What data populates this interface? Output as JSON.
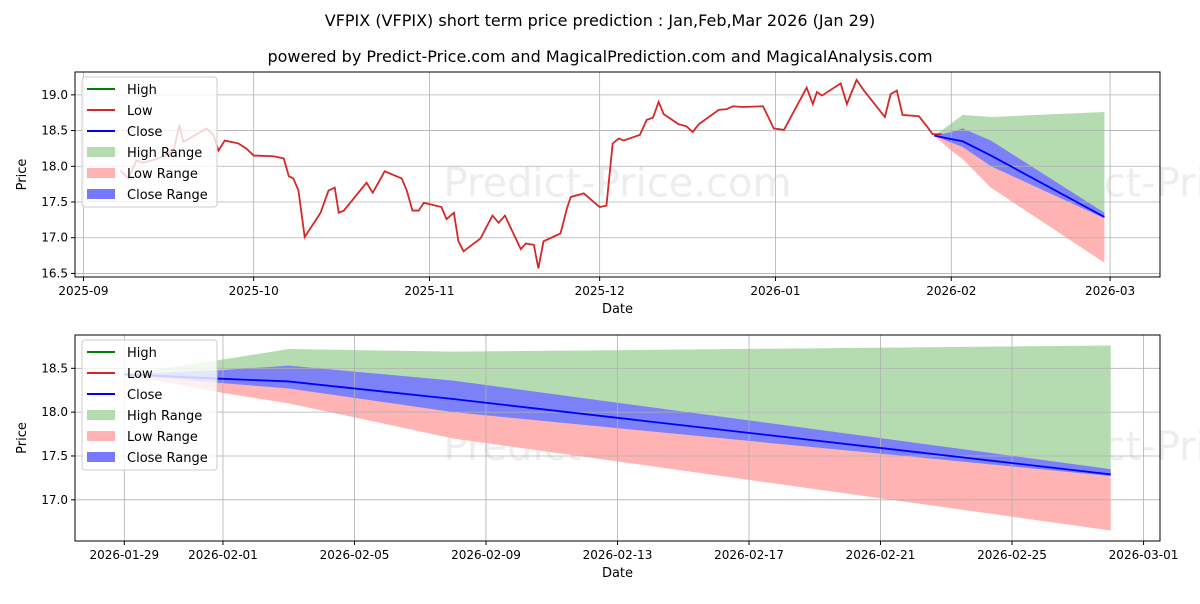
{
  "title": "VFPIX (VFPIX) short term price prediction : Jan,Feb,Mar 2026 (Jan 29)",
  "subtitle": "powered by Predict-Price.com and MagicalPrediction.com and MagicalAnalysis.com",
  "watermark": "Predict-Price.com",
  "colors": {
    "high": "#008000",
    "low": "#d62728",
    "close": "#0000ff",
    "high_range": "#b5dcb0",
    "low_range": "#ffb3b3",
    "close_range": "#7777ff"
  },
  "chart_data": [
    {
      "type": "line",
      "xlabel": "Date",
      "ylabel": "Price",
      "x_unit": "days since 2025-09-01",
      "ylim": [
        16.45,
        19.32
      ],
      "xlim": [
        -1.5,
        189.8
      ],
      "yticks": [
        "16.5",
        "17.0",
        "17.5",
        "18.0",
        "18.5",
        "19.0"
      ],
      "ytick_values": [
        16.5,
        17,
        17.5,
        18,
        18.5,
        19
      ],
      "xticks": [
        "2025-09",
        "2025-10",
        "2025-11",
        "2025-12",
        "2026-01",
        "2026-02",
        "2026-03"
      ],
      "xtick_values": [
        0,
        30,
        61,
        91,
        122,
        153,
        181
      ],
      "legend": [
        "High",
        "Low",
        "Close",
        "High Range",
        "Low Range",
        "Close Range"
      ],
      "legend_position": "top-left",
      "low_series": [
        [
          6.5,
          17.94
        ],
        [
          7.9,
          17.83
        ],
        [
          9.3,
          18.08
        ],
        [
          10.6,
          18.05
        ],
        [
          13.2,
          18.11
        ],
        [
          15.9,
          18.22
        ],
        [
          16.9,
          18.58
        ],
        [
          17.6,
          18.34
        ],
        [
          21.7,
          18.53
        ],
        [
          22.9,
          18.44
        ],
        [
          23.8,
          18.22
        ],
        [
          24.9,
          18.36
        ],
        [
          27.3,
          18.32
        ],
        [
          28.7,
          18.25
        ],
        [
          30,
          18.15
        ],
        [
          33.5,
          18.14
        ],
        [
          35.3,
          18.11
        ],
        [
          36.2,
          17.86
        ],
        [
          37,
          17.83
        ],
        [
          37.9,
          17.66
        ],
        [
          39,
          17.01
        ],
        [
          41.8,
          17.35
        ],
        [
          43.2,
          17.66
        ],
        [
          44.3,
          17.7
        ],
        [
          45,
          17.35
        ],
        [
          45.9,
          17.38
        ],
        [
          49.9,
          17.77
        ],
        [
          51,
          17.63
        ],
        [
          53.1,
          17.93
        ],
        [
          56.1,
          17.83
        ],
        [
          57,
          17.66
        ],
        [
          58,
          17.38
        ],
        [
          59.1,
          17.38
        ],
        [
          60,
          17.49
        ],
        [
          63.1,
          17.43
        ],
        [
          64,
          17.26
        ],
        [
          65.3,
          17.35
        ],
        [
          66.1,
          16.95
        ],
        [
          67,
          16.81
        ],
        [
          70,
          16.99
        ],
        [
          72.1,
          17.31
        ],
        [
          73.2,
          17.21
        ],
        [
          74.3,
          17.31
        ],
        [
          77.1,
          16.84
        ],
        [
          78,
          16.92
        ],
        [
          79.4,
          16.9
        ],
        [
          80.2,
          16.57
        ],
        [
          81.1,
          16.95
        ],
        [
          84.1,
          17.06
        ],
        [
          85.2,
          17.4
        ],
        [
          85.9,
          17.57
        ],
        [
          88.2,
          17.62
        ],
        [
          91,
          17.43
        ],
        [
          92.2,
          17.45
        ],
        [
          93.3,
          18.32
        ],
        [
          94.4,
          18.39
        ],
        [
          95.2,
          18.36
        ],
        [
          98.1,
          18.44
        ],
        [
          99.3,
          18.65
        ],
        [
          100.4,
          18.68
        ],
        [
          101.4,
          18.9
        ],
        [
          102.3,
          18.73
        ],
        [
          104.9,
          18.59
        ],
        [
          106.3,
          18.56
        ],
        [
          107.4,
          18.48
        ],
        [
          108.5,
          18.59
        ],
        [
          112,
          18.79
        ],
        [
          113.4,
          18.8
        ],
        [
          114.5,
          18.84
        ],
        [
          116.2,
          18.83
        ],
        [
          119.8,
          18.84
        ],
        [
          120.8,
          18.68
        ],
        [
          121.7,
          18.53
        ],
        [
          123.5,
          18.51
        ],
        [
          127.5,
          19.1
        ],
        [
          128.6,
          18.87
        ],
        [
          129.3,
          19.04
        ],
        [
          130.2,
          18.99
        ],
        [
          133.5,
          19.16
        ],
        [
          134.6,
          18.87
        ],
        [
          136.3,
          19.21
        ],
        [
          137.6,
          19.06
        ],
        [
          141.3,
          18.69
        ],
        [
          142.3,
          19.01
        ],
        [
          143.4,
          19.06
        ],
        [
          144.4,
          18.72
        ],
        [
          147.3,
          18.7
        ],
        [
          148.7,
          18.56
        ],
        [
          149.7,
          18.45
        ],
        [
          151.3,
          18.45
        ]
      ]
    },
    {
      "type": "line",
      "xlabel": "Date",
      "ylabel": "Price",
      "x_unit": "days since 2025-09-01",
      "ylim": [
        16.53,
        18.88
      ],
      "xlim": [
        148.5,
        181.5
      ],
      "yticks": [
        "17.0",
        "17.5",
        "18.0",
        "18.5"
      ],
      "ytick_values": [
        17,
        17.5,
        18,
        18.5
      ],
      "xticks": [
        "2026-01-29",
        "2026-02-01",
        "2026-02-05",
        "2026-02-09",
        "2026-02-13",
        "2026-02-17",
        "2026-02-21",
        "2026-02-25",
        "2026-03-01"
      ],
      "xtick_values": [
        150,
        153,
        157,
        161,
        165,
        169,
        173,
        177,
        181
      ],
      "legend": [
        "High",
        "Low",
        "Close",
        "High Range",
        "Low Range",
        "Close Range"
      ],
      "legend_position": "top-left"
    }
  ],
  "forecast": {
    "days": [
      150,
      153,
      155,
      160,
      180
    ],
    "close": [
      18.43,
      18.38,
      18.35,
      18.15,
      17.29
    ],
    "close_range_high": [
      18.43,
      18.48,
      18.53,
      18.36,
      17.35
    ],
    "close_range_low": [
      18.43,
      18.33,
      18.27,
      18.0,
      17.27
    ],
    "high_range_high": [
      18.43,
      18.6,
      18.72,
      18.69,
      18.76
    ],
    "low_range_low": [
      18.43,
      18.22,
      18.1,
      17.7,
      16.65
    ]
  }
}
